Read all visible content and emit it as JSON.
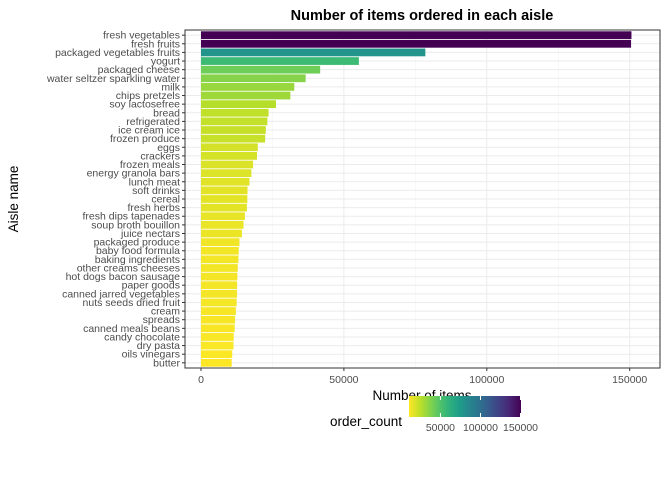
{
  "chart_data": {
    "type": "bar",
    "orientation": "horizontal",
    "title": "Number of items ordered in each aisle",
    "xlabel": "Number of items",
    "ylabel": "Aisle name",
    "xlim": [
      0,
      155000
    ],
    "x_ticks": [
      0,
      50000,
      100000,
      150000
    ],
    "x_tick_labels": [
      "0",
      "50000",
      "100000",
      "150000"
    ],
    "grid": true,
    "categories": [
      "fresh vegetables",
      "fresh fruits",
      "packaged vegetables fruits",
      "yogurt",
      "packaged cheese",
      "water seltzer sparkling water",
      "milk",
      "chips pretzels",
      "soy lactosefree",
      "bread",
      "refrigerated",
      "ice cream ice",
      "frozen produce",
      "eggs",
      "crackers",
      "frozen meals",
      "energy granola bars",
      "lunch meat",
      "soft drinks",
      "cereal",
      "fresh herbs",
      "fresh dips tapenades",
      "soup broth bouillon",
      "juice nectars",
      "packaged produce",
      "baby food formula",
      "baking ingredients",
      "other creams cheeses",
      "hot dogs bacon sausage",
      "paper goods",
      "canned jarred vegetables",
      "nuts seeds dried fruit",
      "cream",
      "spreads",
      "canned meals beans",
      "candy chocolate",
      "dry pasta",
      "oils vinegars",
      "butter"
    ],
    "values": [
      150609,
      150473,
      78493,
      55240,
      41699,
      36617,
      32644,
      31269,
      26240,
      23635,
      23228,
      22676,
      22453,
      19875,
      19592,
      18221,
      17624,
      16957,
      16279,
      16201,
      16052,
      15350,
      14882,
      14321,
      13460,
      13198,
      13088,
      12874,
      12726,
      12634,
      12614,
      12471,
      12200,
      11932,
      11774,
      11453,
      11370,
      10921,
      10735
    ],
    "legend": {
      "title": "order_count",
      "placement": "bottom",
      "tick_values": [
        50000,
        100000,
        150000
      ],
      "tick_labels": [
        "50000",
        "100000",
        "150000"
      ],
      "range": [
        10735,
        150609
      ],
      "colormap": "viridis",
      "reversed": true
    }
  },
  "colors": {
    "panel_background": "#ffffff",
    "panel_border": "#333333",
    "grid_major": "#ebebeb",
    "grid_minor": "#f3f3f3",
    "viridis_stops": [
      "#440154",
      "#482878",
      "#3e4989",
      "#31688e",
      "#26828e",
      "#1f9e89",
      "#35b779",
      "#6ece58",
      "#b5de2b",
      "#fde725"
    ]
  }
}
